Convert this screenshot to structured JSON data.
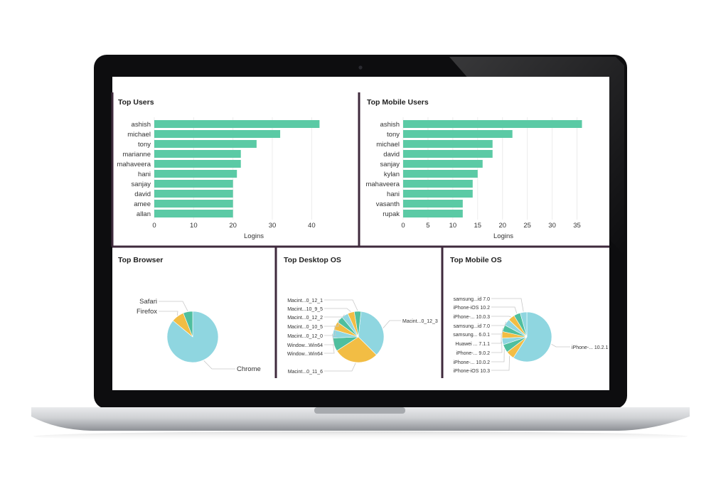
{
  "colors": {
    "bar": "#5bcaa5",
    "pie_blue": "#8fd6e0",
    "pie_orange": "#f2bd44",
    "pie_green": "#4fbf9e",
    "divider": "#3f2a3c"
  },
  "dashboard": {
    "top_users": {
      "title": "Top Users",
      "chart_data": {
        "type": "bar",
        "orientation": "horizontal",
        "categories": [
          "ashish",
          "michael",
          "tony",
          "marianne",
          "mahaveera",
          "hani",
          "sanjay",
          "david",
          "amee",
          "allan"
        ],
        "values": [
          42,
          32,
          26,
          22,
          22,
          21,
          20,
          20,
          20,
          20
        ],
        "xlabel": "Logins",
        "xlim": [
          0,
          45
        ],
        "xticks": [
          0,
          10,
          20,
          30,
          40
        ]
      }
    },
    "top_mobile_users": {
      "title": "Top Mobile Users",
      "chart_data": {
        "type": "bar",
        "orientation": "horizontal",
        "categories": [
          "ashish",
          "tony",
          "michael",
          "david",
          "sanjay",
          "kylan",
          "mahaveera",
          "hani",
          "vasanth",
          "rupak"
        ],
        "values": [
          36,
          22,
          18,
          18,
          16,
          15,
          14,
          14,
          12,
          12
        ],
        "xlabel": "Logins",
        "xlim": [
          0,
          37.5
        ],
        "xticks": [
          0,
          5,
          10,
          15,
          20,
          25,
          30,
          35
        ]
      }
    },
    "top_browser": {
      "title": "Top Browser",
      "chart_data": {
        "type": "pie",
        "slices": [
          {
            "label": "Chrome",
            "value": 86,
            "color": "#8fd6e0"
          },
          {
            "label": "Firefox",
            "value": 8,
            "color": "#f2bd44"
          },
          {
            "label": "Safari",
            "value": 6,
            "color": "#4fbf9e"
          }
        ]
      }
    },
    "top_desktop_os": {
      "title": "Top Desktop OS",
      "chart_data": {
        "type": "pie",
        "slices": [
          {
            "label": "Macint...0_12_3",
            "value": 34,
            "color": "#8fd6e0"
          },
          {
            "label": "Macint...0_11_6",
            "value": 27,
            "color": "#f2bd44"
          },
          {
            "label": "Window...Win64",
            "value": 8,
            "color": "#4fbf9e"
          },
          {
            "label": "Window...Win64",
            "value": 5,
            "color": "#8fd6e0"
          },
          {
            "label": "Macint...0_12_0",
            "value": 5,
            "color": "#f2bd44"
          },
          {
            "label": "Macint...0_10_5",
            "value": 4,
            "color": "#4fbf9e"
          },
          {
            "label": "Macint...0_12_2",
            "value": 4,
            "color": "#8fd6e0"
          },
          {
            "label": "Macint...10_9_5",
            "value": 4,
            "color": "#f2bd44"
          },
          {
            "label": "Macint...0_12_1",
            "value": 4,
            "color": "#4fbf9e"
          }
        ]
      }
    },
    "top_mobile_os": {
      "title": "Top Mobile OS",
      "chart_data": {
        "type": "pie",
        "slices": [
          {
            "label": "iPhone-... 10.2.1",
            "value": 55,
            "color": "#8fd6e0"
          },
          {
            "label": "iPhone-iOS 10.3",
            "value": 5,
            "color": "#f2bd44"
          },
          {
            "label": "iPhone-... 10.0.2",
            "value": 5,
            "color": "#4fbf9e"
          },
          {
            "label": "iPhone-... 9.0.2",
            "value": 4,
            "color": "#8fd6e0"
          },
          {
            "label": "Huawei ... 7.1.1",
            "value": 4,
            "color": "#f2bd44"
          },
          {
            "label": "samsung... 6.0.1",
            "value": 4,
            "color": "#4fbf9e"
          },
          {
            "label": "samsung...id 7.0",
            "value": 4,
            "color": "#8fd6e0"
          },
          {
            "label": "iPhone-... 10.0.3",
            "value": 4,
            "color": "#f2bd44"
          },
          {
            "label": "iPhone-iOS 10.2",
            "value": 4,
            "color": "#4fbf9e"
          },
          {
            "label": "samsung...id 7.0",
            "value": 4,
            "color": "#8fd6e0"
          }
        ]
      }
    }
  }
}
